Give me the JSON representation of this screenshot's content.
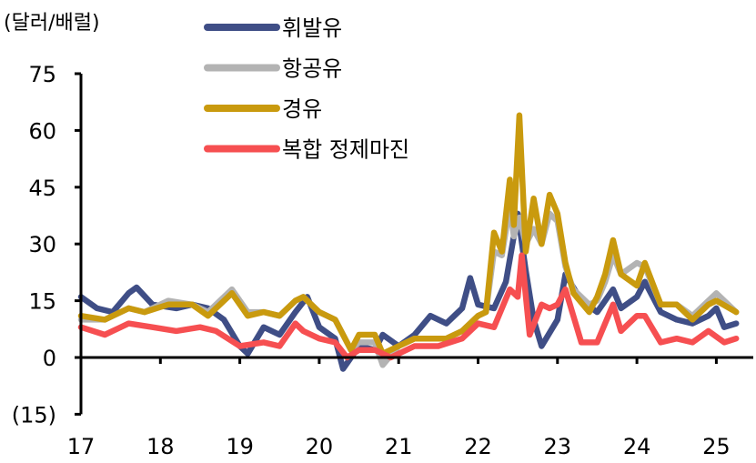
{
  "chart_data": {
    "type": "line",
    "unit_label": "(달러/배럴)",
    "ylim": [
      -15,
      75
    ],
    "yticks": [
      75,
      60,
      45,
      30,
      15,
      0,
      -15
    ],
    "ytick_labels": [
      "75",
      "60",
      "45",
      "30",
      "15",
      "0",
      "(15)"
    ],
    "xlim": [
      17,
      25.3
    ],
    "xticks": [
      17,
      18,
      19,
      20,
      21,
      22,
      23,
      24,
      25
    ],
    "xtick_labels": [
      "17",
      "18",
      "19",
      "20",
      "21",
      "22",
      "23",
      "24",
      "25"
    ],
    "grid": false,
    "legend_placement": "top-center",
    "series": [
      {
        "name": "휘발유",
        "color": "#3f4e86",
        "x": [
          17.0,
          17.2,
          17.4,
          17.6,
          17.7,
          17.9,
          18.2,
          18.4,
          18.6,
          18.8,
          19.0,
          19.1,
          19.3,
          19.5,
          19.7,
          19.85,
          20.0,
          20.2,
          20.3,
          20.5,
          20.7,
          20.8,
          21.0,
          21.2,
          21.4,
          21.6,
          21.8,
          21.9,
          22.0,
          22.2,
          22.35,
          22.5,
          22.6,
          22.7,
          22.8,
          23.0,
          23.1,
          23.3,
          23.5,
          23.7,
          23.8,
          24.0,
          24.1,
          24.3,
          24.5,
          24.7,
          24.9,
          25.0,
          25.1,
          25.25
        ],
        "y": [
          16,
          13,
          12,
          17,
          18.5,
          14,
          13,
          14,
          13,
          10,
          3,
          1,
          8,
          6,
          12,
          16,
          8,
          5,
          -3,
          3,
          2,
          6,
          3,
          6,
          11,
          9,
          13,
          21,
          14,
          13,
          20,
          38,
          23,
          10,
          3,
          10,
          22,
          15,
          12,
          18,
          13,
          16,
          20,
          12,
          10,
          9,
          11,
          13,
          8,
          9
        ]
      },
      {
        "name": "항공유",
        "color": "#b3b3b3",
        "x": [
          17.0,
          17.3,
          17.6,
          17.8,
          18.1,
          18.4,
          18.6,
          18.9,
          19.1,
          19.3,
          19.5,
          19.7,
          19.8,
          20.0,
          20.2,
          20.4,
          20.5,
          20.7,
          20.8,
          21.0,
          21.2,
          21.4,
          21.6,
          21.8,
          22.0,
          22.1,
          22.2,
          22.3,
          22.4,
          22.45,
          22.52,
          22.6,
          22.7,
          22.8,
          22.9,
          23.0,
          23.1,
          23.2,
          23.4,
          23.5,
          23.6,
          23.7,
          23.8,
          24.0,
          24.1,
          24.3,
          24.5,
          24.7,
          24.9,
          25.0,
          25.25
        ],
        "y": [
          10,
          10,
          13,
          12,
          15,
          14,
          12,
          18,
          12,
          12,
          11,
          15,
          16,
          12,
          10,
          2,
          4,
          4,
          -2,
          3,
          5,
          5,
          5,
          7,
          11,
          12,
          28,
          27,
          40,
          32,
          37,
          30,
          34,
          30,
          38,
          36,
          24,
          18,
          14,
          15,
          20,
          27,
          22,
          25,
          24,
          14,
          14,
          11,
          15,
          17,
          12
        ]
      },
      {
        "name": "경유",
        "color": "#c99a0e",
        "x": [
          17.0,
          17.3,
          17.6,
          17.8,
          18.1,
          18.4,
          18.6,
          18.9,
          19.1,
          19.3,
          19.5,
          19.7,
          19.8,
          20.0,
          20.2,
          20.4,
          20.5,
          20.7,
          20.8,
          21.0,
          21.2,
          21.4,
          21.6,
          21.8,
          22.0,
          22.1,
          22.2,
          22.3,
          22.4,
          22.45,
          22.52,
          22.6,
          22.7,
          22.8,
          22.9,
          23.0,
          23.1,
          23.2,
          23.4,
          23.5,
          23.6,
          23.7,
          23.8,
          24.0,
          24.1,
          24.3,
          24.5,
          24.7,
          24.9,
          25.0,
          25.25
        ],
        "y": [
          11,
          10,
          13,
          12,
          14,
          14,
          11,
          17,
          11,
          12,
          11,
          15,
          16,
          12,
          10,
          2,
          6,
          6,
          1,
          3,
          5,
          5,
          5,
          7,
          11,
          12,
          33,
          28,
          47,
          35,
          64,
          28,
          42,
          30,
          43,
          38,
          25,
          17,
          12,
          16,
          22,
          31,
          22,
          19,
          25,
          14,
          14,
          10,
          14,
          15,
          12
        ]
      },
      {
        "name": "복합 정제마진",
        "color": "#f64f51",
        "x": [
          17.0,
          17.3,
          17.6,
          17.9,
          18.2,
          18.5,
          18.7,
          19.0,
          19.3,
          19.5,
          19.7,
          19.8,
          20.0,
          20.2,
          20.35,
          20.5,
          20.7,
          20.9,
          21.2,
          21.5,
          21.8,
          22.0,
          22.2,
          22.4,
          22.5,
          22.55,
          22.65,
          22.8,
          22.9,
          23.0,
          23.1,
          23.3,
          23.5,
          23.7,
          23.8,
          24.0,
          24.1,
          24.3,
          24.5,
          24.7,
          24.9,
          25.1,
          25.25
        ],
        "y": [
          8,
          6,
          9,
          8,
          7,
          8,
          7,
          3,
          4,
          3,
          9,
          7,
          5,
          4,
          0,
          2,
          2,
          0,
          3,
          3,
          5,
          9,
          8,
          18,
          16,
          27,
          6,
          14,
          13,
          14,
          18,
          4,
          4,
          14,
          7,
          11,
          11,
          4,
          5,
          4,
          7,
          4,
          5
        ]
      }
    ]
  }
}
